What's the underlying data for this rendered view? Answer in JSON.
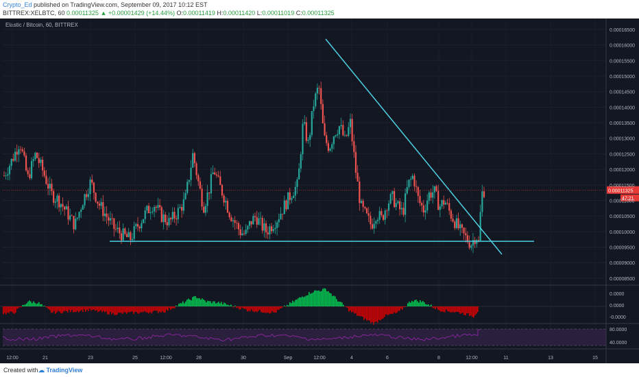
{
  "header": {
    "author": "Crypto_Ed",
    "published_text": "published on TradingView.com, September 09, 2017 10:12 EST",
    "symbol_line": "BITTREX:XELBTC, 60",
    "last": "0.00011325",
    "change": "▲ +0.00001429 (+14.44%)",
    "o_label": "O:",
    "o_value": "0.00011419",
    "h_label": "H:",
    "h_value": "0.00011420",
    "l_label": "L:",
    "l_value": "0.00011019",
    "c_label": "C:",
    "c_value": "0.00011325"
  },
  "footer": {
    "created_with": "Created with",
    "logo_text": "TradingView",
    "logo_icon": "cloud-icon"
  },
  "colors": {
    "background": "#131722",
    "up": "#26a69a",
    "down": "#ef5350",
    "trendline": "#4dd0e1",
    "price_label": "#e53935",
    "osc_up": "#00c853",
    "osc_down": "#d50000",
    "rsi": "#9c27b0"
  },
  "chart_data": [
    {
      "type": "candlestick",
      "title": "Elastic / Bitcoin, 60, BITTREX",
      "x_ticks": [
        "12:00",
        "21",
        "23",
        "25",
        "12:00",
        "28",
        "30",
        "Sep",
        "12:00",
        "4",
        "6",
        "8",
        "12:00",
        "11",
        "13",
        "15"
      ],
      "y_ticks": [
        "0.00016500",
        "0.00016000",
        "0.00015500",
        "0.00015000",
        "0.00014500",
        "0.00014000",
        "0.00013500",
        "0.00013000",
        "0.00012500",
        "0.00012000",
        "0.00011500",
        "0.00011000",
        "0.00010500",
        "0.00010000",
        "0.00009500",
        "0.00009000",
        "0.00008500"
      ],
      "ylim": [
        8.3e-05,
        0.0001685
      ],
      "last_price_label": "0.00011325",
      "countdown_label": "47:21",
      "last_price": 0.00011325,
      "price_path": [
        [
          0,
          0.000118
        ],
        [
          3,
          0.000123
        ],
        [
          6,
          0.000129
        ],
        [
          9,
          0.000117
        ],
        [
          12,
          0.000125
        ],
        [
          15,
          0.000119
        ],
        [
          18,
          0.000112
        ],
        [
          21,
          0.00011
        ],
        [
          24,
          0.000106
        ],
        [
          27,
          0.000102
        ],
        [
          30,
          0.00011
        ],
        [
          33,
          0.000116
        ],
        [
          36,
          0.000109
        ],
        [
          39,
          0.000105
        ],
        [
          42,
          0.000101
        ],
        [
          45,
          9.9e-05
        ],
        [
          48,
          9.75e-05
        ],
        [
          51,
          0.000102
        ],
        [
          54,
          0.000106
        ],
        [
          57,
          0.000109
        ],
        [
          60,
          0.000105
        ],
        [
          63,
          0.000103
        ],
        [
          66,
          0.000106
        ],
        [
          69,
          0.00011
        ],
        [
          72,
          0.000125
        ],
        [
          74,
          0.000116
        ],
        [
          76,
          0.000108
        ],
        [
          78,
          0.000113
        ],
        [
          80,
          0.00012
        ],
        [
          82,
          0.000115
        ],
        [
          84,
          0.000111
        ],
        [
          86,
          0.000106
        ],
        [
          88,
          0.000103
        ],
        [
          90,
          0.0001
        ],
        [
          92,
          9.9e-05
        ],
        [
          94,
          0.000103
        ],
        [
          96,
          0.000105
        ],
        [
          98,
          0.000102
        ],
        [
          100,
          0.0001
        ],
        [
          102,
          0.000102
        ],
        [
          104,
          0.000104
        ],
        [
          106,
          0.000107
        ],
        [
          108,
          0.00011
        ],
        [
          110,
          0.000113
        ],
        [
          112,
          0.000115
        ],
        [
          114,
          0.000135
        ],
        [
          116,
          0.000128
        ],
        [
          118,
          0.000141
        ],
        [
          120,
          0.000147
        ],
        [
          122,
          0.00013
        ],
        [
          124,
          0.000127
        ],
        [
          126,
          0.000132
        ],
        [
          128,
          0.000134
        ],
        [
          130,
          0.000129
        ],
        [
          132,
          0.000135
        ],
        [
          134,
          0.00012
        ],
        [
          136,
          0.000108
        ],
        [
          138,
          0.000105
        ],
        [
          140,
          0.000102
        ],
        [
          142,
          0.000106
        ],
        [
          144,
          0.000104
        ],
        [
          146,
          0.000109
        ],
        [
          148,
          0.000111
        ],
        [
          150,
          0.000108
        ],
        [
          152,
          0.000106
        ],
        [
          154,
          0.000115
        ],
        [
          156,
          0.000118
        ],
        [
          158,
          0.00011
        ],
        [
          160,
          0.000107
        ],
        [
          162,
          0.000112
        ],
        [
          164,
          0.000113
        ],
        [
          166,
          0.000108
        ],
        [
          168,
          0.00011
        ],
        [
          170,
          0.000106
        ],
        [
          172,
          0.000103
        ],
        [
          174,
          0.0001
        ],
        [
          176,
          9.8e-05
        ],
        [
          178,
          9.6e-05
        ],
        [
          180,
          9.9e-05
        ],
        [
          181,
          9.6e-05
        ],
        [
          182,
          0.000112
        ],
        [
          183,
          0.0001132
        ]
      ]
    },
    {
      "type": "histogram",
      "title": "",
      "y_ticks": [
        "0.0000",
        "0.0000",
        "-0.0000"
      ]
    },
    {
      "type": "line",
      "title": "",
      "y_ticks": [
        "80.0000",
        "40.0000"
      ]
    }
  ]
}
